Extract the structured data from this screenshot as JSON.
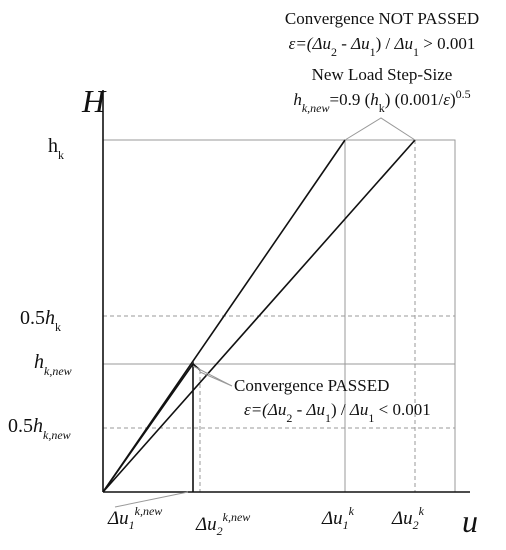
{
  "axes": {
    "y_label": "H",
    "x_label": "u"
  },
  "y_labels": {
    "hk": [
      "h",
      "k"
    ],
    "half_hk": [
      "0.5",
      "h",
      "k"
    ],
    "hknew": [
      "h",
      "k,new"
    ],
    "half_hknew": [
      "0.5",
      "h",
      "k,new"
    ]
  },
  "x_labels": {
    "du1new": [
      "Δu",
      "1",
      "k,new"
    ],
    "du2new": [
      "Δu",
      "2",
      "k,new"
    ],
    "du1k": [
      "Δu",
      "1",
      "k"
    ],
    "du2k": [
      "Δu",
      "2",
      "k"
    ]
  },
  "not_passed": {
    "title": "Convergence NOT PASSED",
    "formula": [
      "ε=(",
      "Δu",
      "2",
      " - ",
      "Δu",
      "1",
      ") / ",
      "Δu",
      "1",
      " > 0.001"
    ],
    "subtitle": "New Load Step-Size",
    "step": [
      "h",
      "k,new",
      "=0.9 (",
      "h",
      "k",
      ") (0.001/",
      "ε",
      ")",
      "0.5"
    ]
  },
  "passed": {
    "title": "Convergence PASSED",
    "formula": [
      "ε=(",
      "Δu",
      "2",
      " - ",
      "Δu",
      "1",
      ") / ",
      "Δu",
      "1",
      " < 0.001"
    ]
  }
}
